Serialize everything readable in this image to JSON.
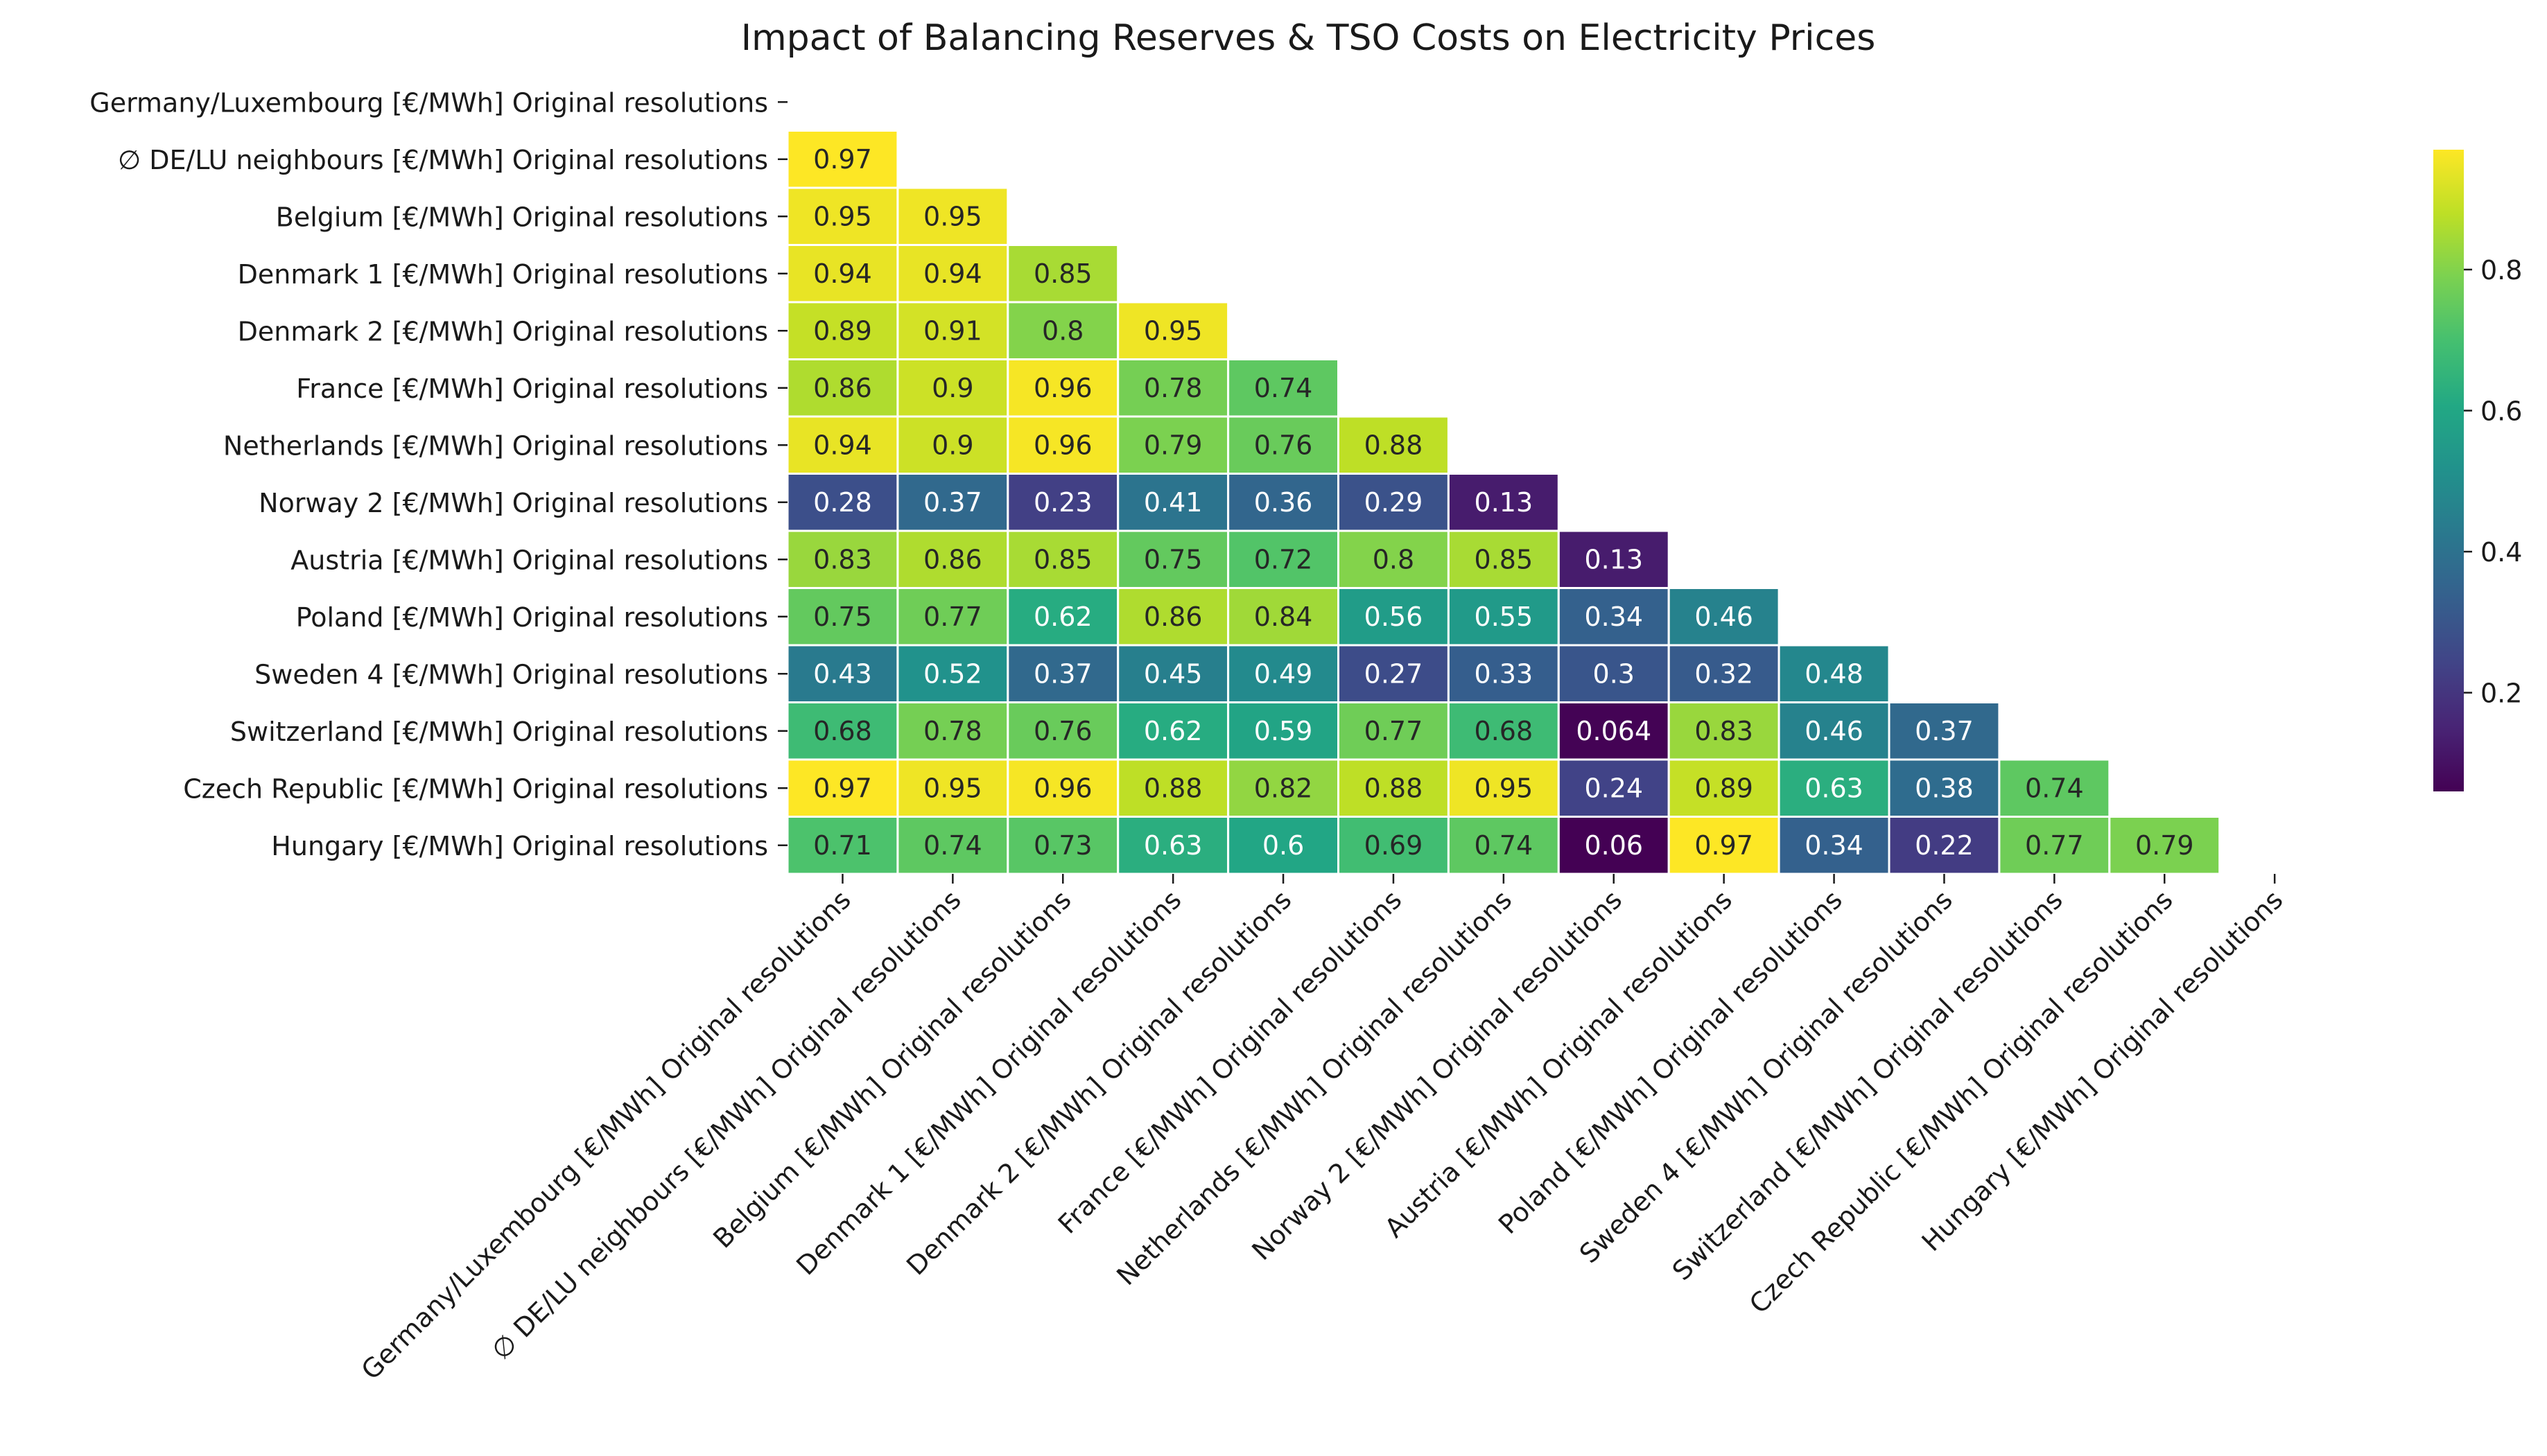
{
  "chart_data": {
    "type": "heatmap",
    "title": "Impact of Balancing Reserves & TSO Costs on Electricity Prices",
    "xlabel": "",
    "ylabel": "",
    "mask": "upper-triangle-including-diagonal",
    "colormap": "viridis",
    "colorbar": {
      "vmin": 0.06,
      "vmax": 0.97,
      "ticks": [
        0.2,
        0.4,
        0.6,
        0.8
      ],
      "tick_labels": [
        "0.2",
        "0.4",
        "0.6",
        "0.8"
      ],
      "placement": "right"
    },
    "labels": [
      "Germany/Luxembourg [€/MWh] Original resolutions",
      "∅ DE/LU neighbours [€/MWh] Original resolutions",
      "Belgium [€/MWh] Original resolutions",
      "Denmark 1 [€/MWh] Original resolutions",
      "Denmark 2 [€/MWh] Original resolutions",
      "France [€/MWh] Original resolutions",
      "Netherlands [€/MWh] Original resolutions",
      "Norway 2 [€/MWh] Original resolutions",
      "Austria [€/MWh] Original resolutions",
      "Poland [€/MWh] Original resolutions",
      "Sweden 4 [€/MWh] Original resolutions",
      "Switzerland [€/MWh] Original resolutions",
      "Czech Republic [€/MWh] Original resolutions",
      "Hungary [€/MWh] Original resolutions"
    ],
    "matrix": [
      [],
      [
        0.97
      ],
      [
        0.95,
        0.95
      ],
      [
        0.94,
        0.94,
        0.85
      ],
      [
        0.89,
        0.91,
        0.8,
        0.95
      ],
      [
        0.86,
        0.9,
        0.96,
        0.78,
        0.74
      ],
      [
        0.94,
        0.9,
        0.96,
        0.79,
        0.76,
        0.88
      ],
      [
        0.28,
        0.37,
        0.23,
        0.41,
        0.36,
        0.29,
        0.13
      ],
      [
        0.83,
        0.86,
        0.85,
        0.75,
        0.72,
        0.8,
        0.85,
        0.13
      ],
      [
        0.75,
        0.77,
        0.62,
        0.86,
        0.84,
        0.56,
        0.55,
        0.34,
        0.46
      ],
      [
        0.43,
        0.52,
        0.37,
        0.45,
        0.49,
        0.27,
        0.33,
        0.3,
        0.32,
        0.48
      ],
      [
        0.68,
        0.78,
        0.76,
        0.62,
        0.59,
        0.77,
        0.68,
        0.064,
        0.83,
        0.46,
        0.37
      ],
      [
        0.97,
        0.95,
        0.96,
        0.88,
        0.82,
        0.88,
        0.95,
        0.24,
        0.89,
        0.63,
        0.38,
        0.74
      ],
      [
        0.71,
        0.74,
        0.73,
        0.63,
        0.6,
        0.69,
        0.74,
        0.06,
        0.97,
        0.34,
        0.22,
        0.77,
        0.79
      ]
    ],
    "cell_labels": [
      [],
      [
        "0.97"
      ],
      [
        "0.95",
        "0.95"
      ],
      [
        "0.94",
        "0.94",
        "0.85"
      ],
      [
        "0.89",
        "0.91",
        "0.8",
        "0.95"
      ],
      [
        "0.86",
        "0.9",
        "0.96",
        "0.78",
        "0.74"
      ],
      [
        "0.94",
        "0.9",
        "0.96",
        "0.79",
        "0.76",
        "0.88"
      ],
      [
        "0.28",
        "0.37",
        "0.23",
        "0.41",
        "0.36",
        "0.29",
        "0.13"
      ],
      [
        "0.83",
        "0.86",
        "0.85",
        "0.75",
        "0.72",
        "0.8",
        "0.85",
        "0.13"
      ],
      [
        "0.75",
        "0.77",
        "0.62",
        "0.86",
        "0.84",
        "0.56",
        "0.55",
        "0.34",
        "0.46"
      ],
      [
        "0.43",
        "0.52",
        "0.37",
        "0.45",
        "0.49",
        "0.27",
        "0.33",
        "0.3",
        "0.32",
        "0.48"
      ],
      [
        "0.68",
        "0.78",
        "0.76",
        "0.62",
        "0.59",
        "0.77",
        "0.68",
        "0.064",
        "0.83",
        "0.46",
        "0.37"
      ],
      [
        "0.97",
        "0.95",
        "0.96",
        "0.88",
        "0.82",
        "0.88",
        "0.95",
        "0.24",
        "0.89",
        "0.63",
        "0.38",
        "0.74"
      ],
      [
        "0.71",
        "0.74",
        "0.73",
        "0.63",
        "0.6",
        "0.69",
        "0.74",
        "0.06",
        "0.97",
        "0.34",
        "0.22",
        "0.77",
        "0.79"
      ]
    ]
  }
}
